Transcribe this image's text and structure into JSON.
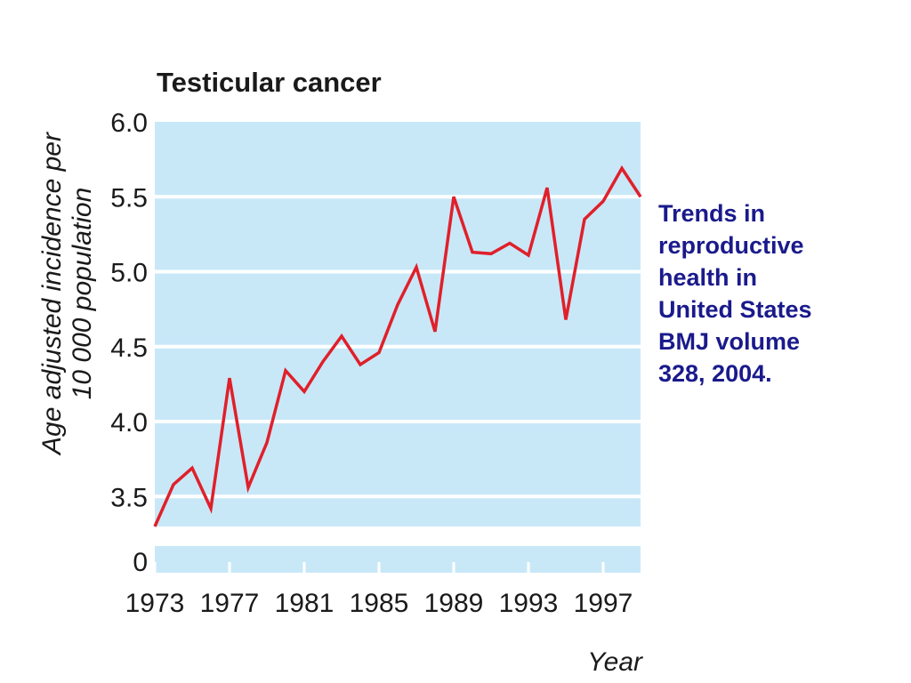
{
  "caption": {
    "lines": [
      "Trends in",
      "reproductive",
      "health in",
      "United States",
      "BMJ volume",
      "328, 2004."
    ],
    "color": "#1a1a8c"
  },
  "chart_data": {
    "type": "line",
    "title": "Testicular cancer",
    "xlabel": "Year",
    "ylabel_lines": [
      "Age adjusted incidence per",
      "10 000 population"
    ],
    "x_ticks": [
      "1973",
      "1977",
      "1981",
      "1985",
      "1989",
      "1993",
      "1997"
    ],
    "y_ticks": [
      "3.5",
      "4.0",
      "4.5",
      "5.0",
      "5.5",
      "6.0"
    ],
    "y_zero_label": "0",
    "y_axis_break": true,
    "ylim": [
      3.3,
      6.0
    ],
    "xlim": [
      1973,
      1999
    ],
    "grid": true,
    "colors": {
      "plot_background": "#c8e8f8",
      "line": "#e0202a",
      "grid": "#ffffff"
    },
    "series": [
      {
        "x": [
          1973,
          1974,
          1975,
          1976,
          1977,
          1978,
          1979,
          1980,
          1981,
          1982,
          1983,
          1984,
          1985,
          1986,
          1987,
          1988,
          1989,
          1990,
          1991,
          1992,
          1993,
          1994,
          1995,
          1996,
          1997,
          1998,
          1999
        ],
        "values": [
          3.3,
          3.58,
          3.69,
          3.42,
          4.29,
          3.56,
          3.86,
          4.34,
          4.2,
          4.4,
          4.57,
          4.38,
          4.46,
          4.78,
          5.03,
          4.6,
          5.5,
          5.13,
          5.12,
          5.19,
          5.11,
          5.56,
          4.68,
          5.35,
          5.47,
          5.69,
          5.5
        ]
      }
    ]
  }
}
